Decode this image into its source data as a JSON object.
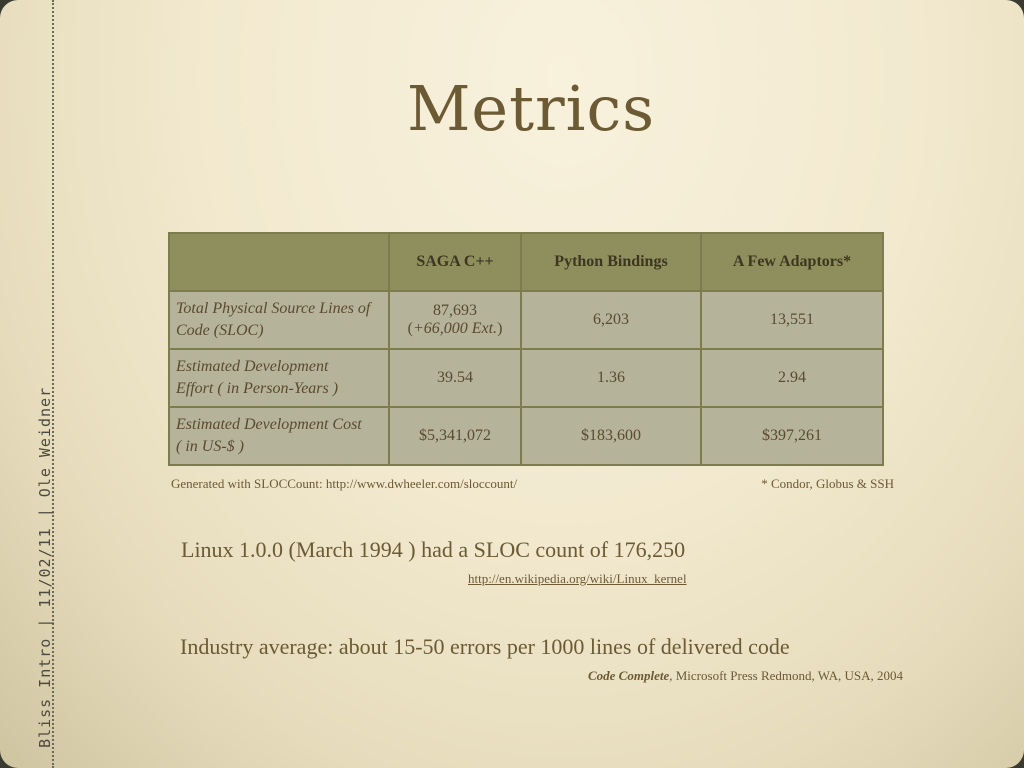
{
  "sidebar": {
    "label": "Bliss Intro | 11/02/11 | Ole Weidner"
  },
  "title": "Metrics",
  "table": {
    "headers": [
      "",
      "SAGA C++",
      "Python Bindings",
      "A Few Adaptors*"
    ],
    "rows": [
      {
        "label_line1": "Total Physical Source Lines of",
        "label_line2": "Code (SLOC)",
        "saga_line1": "87,693",
        "saga_ext": "+66,000 Ext.",
        "python": "6,203",
        "adaptors": "13,551"
      },
      {
        "label_line1": "Estimated Development",
        "label_line2": "Effort ( in Person-Years )",
        "saga": "39.54",
        "python": "1.36",
        "adaptors": "2.94"
      },
      {
        "label_line1": "Estimated Development Cost",
        "label_line2": "( in US-$ )",
        "saga": "$5,341,072",
        "python": "$183,600",
        "adaptors": "$397,261"
      }
    ]
  },
  "notes": {
    "generated": "Generated with SLOCCount:  http://www.dwheeler.com/sloccount/",
    "footnote": "* Condor, Globus & SSH"
  },
  "linux": {
    "text": "Linux 1.0.0 (March 1994 ) had a SLOC count of 176,250",
    "source": "http://en.wikipedia.org/wiki/Linux_kernel"
  },
  "industry": {
    "text": "Industry average: about 15-50 errors per 1000 lines of delivered code",
    "citation_book": "Code Complete",
    "citation_rest": ", Microsoft Press Redmond, WA, USA, 2004"
  }
}
